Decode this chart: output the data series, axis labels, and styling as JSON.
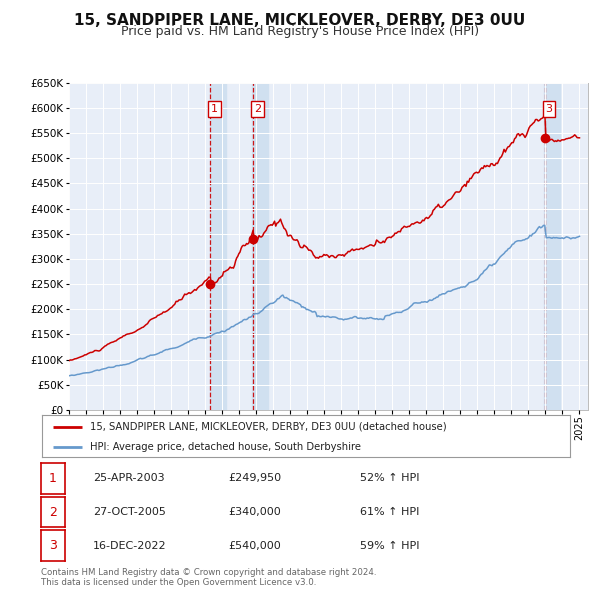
{
  "title": "15, SANDPIPER LANE, MICKLEOVER, DERBY, DE3 0UU",
  "subtitle": "Price paid vs. HM Land Registry's House Price Index (HPI)",
  "title_fontsize": 11,
  "subtitle_fontsize": 9,
  "ylim": [
    0,
    650000
  ],
  "yticks": [
    0,
    50000,
    100000,
    150000,
    200000,
    250000,
    300000,
    350000,
    400000,
    450000,
    500000,
    550000,
    600000,
    650000
  ],
  "xlim_start": 1995.0,
  "xlim_end": 2025.5,
  "background_color": "#ffffff",
  "plot_bg_color": "#e8eef8",
  "grid_color": "#ffffff",
  "red_line_color": "#cc0000",
  "blue_line_color": "#6699cc",
  "vshade_color": "#d0e0f0",
  "vline_color": "#cc0000",
  "sale_dates": [
    2003.31,
    2005.82,
    2022.96
  ],
  "sale_prices": [
    249950,
    340000,
    540000
  ],
  "sale_labels": [
    "1",
    "2",
    "3"
  ],
  "footer_text": "Contains HM Land Registry data © Crown copyright and database right 2024.\nThis data is licensed under the Open Government Licence v3.0.",
  "legend_label_red": "15, SANDPIPER LANE, MICKLEOVER, DERBY, DE3 0UU (detached house)",
  "legend_label_blue": "HPI: Average price, detached house, South Derbyshire",
  "table_data": [
    [
      "1",
      "25-APR-2003",
      "£249,950",
      "52% ↑ HPI"
    ],
    [
      "2",
      "27-OCT-2005",
      "£340,000",
      "61% ↑ HPI"
    ],
    [
      "3",
      "16-DEC-2022",
      "£540,000",
      "59% ↑ HPI"
    ]
  ]
}
